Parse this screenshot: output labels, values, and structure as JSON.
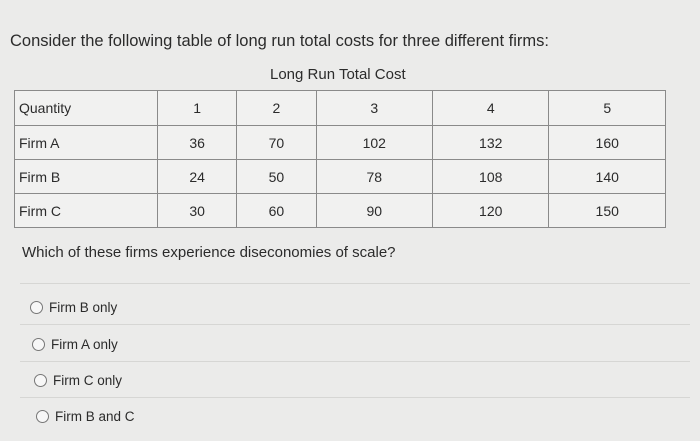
{
  "question_intro": "Consider the following table of long run total costs for three different firms:",
  "table": {
    "caption": "Long Run Total Cost",
    "header": [
      "Quantity",
      "1",
      "2",
      "3",
      "4",
      "5"
    ],
    "rows": [
      [
        "Firm A",
        "36",
        "70",
        "102",
        "132",
        "160"
      ],
      [
        "Firm B",
        "24",
        "50",
        "78",
        "108",
        "140"
      ],
      [
        "Firm C",
        "30",
        "60",
        "90",
        "120",
        "150"
      ]
    ]
  },
  "question": "Which of these firms experience diseconomies of scale?",
  "options": [
    "Firm B only",
    "Firm A only",
    "Firm C only",
    "Firm B and C"
  ]
}
